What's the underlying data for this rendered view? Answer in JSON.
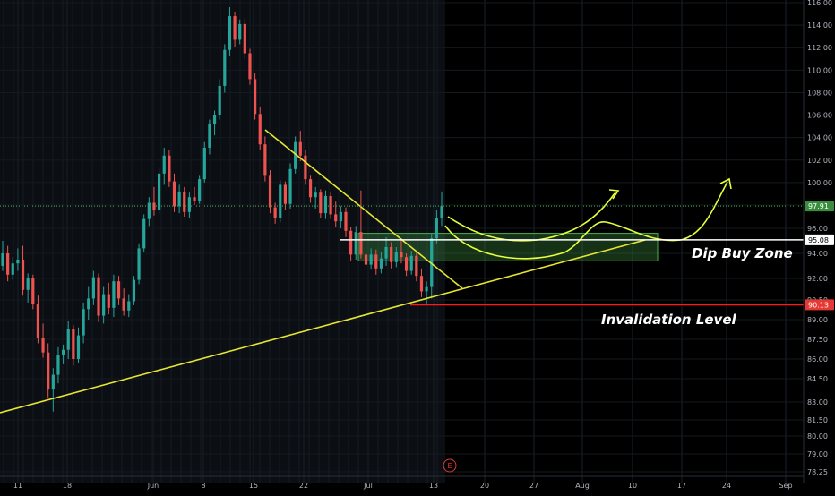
{
  "chart_data": {
    "type": "candlestick",
    "y_axis": {
      "ticks": [
        "116.00",
        "114.00",
        "112.00",
        "110.00",
        "108.00",
        "106.00",
        "104.00",
        "102.00",
        "100.00",
        "98.00",
        "96.00",
        "94.00",
        "92.00",
        "90.50",
        "89.00",
        "87.50",
        "86.00",
        "84.50",
        "83.00",
        "81.50",
        "80.00",
        "79.00",
        "78.25"
      ],
      "ylim": [
        78.0,
        116.5
      ]
    },
    "x_axis": {
      "ticks": [
        "11",
        "18",
        "Jun",
        "8",
        "15",
        "22",
        "Jul",
        "13",
        "20",
        "27",
        "Aug",
        "10",
        "17",
        "24",
        "Sep"
      ]
    },
    "price_badges": [
      {
        "label": "97.91",
        "value": 97.91,
        "color": "#388e3c"
      },
      {
        "label": "95.08",
        "value": 95.08,
        "color": "#ffffff"
      },
      {
        "label": "90.13",
        "value": 90.13,
        "color": "#e53935"
      }
    ],
    "zones": [
      {
        "name": "Dip Buy Zone",
        "y_low": 93.4,
        "y_high": 95.6,
        "color": "#4caf50"
      }
    ],
    "levels": [
      {
        "name": "Invalidation Level",
        "value": 90.13,
        "color": "#ff1a1a"
      },
      {
        "value": 95.08,
        "color": "#ffffff"
      }
    ],
    "annotations": [
      "Dip Buy Zone",
      "Invalidation Level"
    ],
    "event_marker": "E",
    "ohlc": [
      [
        93.0,
        95.0,
        92.6,
        94.0
      ],
      [
        94.0,
        94.6,
        91.8,
        92.3
      ],
      [
        92.3,
        93.7,
        91.9,
        93.2
      ],
      [
        93.2,
        94.4,
        92.6,
        93.5
      ],
      [
        93.5,
        94.6,
        90.8,
        91.2
      ],
      [
        91.2,
        92.4,
        90.3,
        92.0
      ],
      [
        92.0,
        92.3,
        89.8,
        90.2
      ],
      [
        90.2,
        90.8,
        87.2,
        87.6
      ],
      [
        87.6,
        88.7,
        86.1,
        86.5
      ],
      [
        86.5,
        87.2,
        83.3,
        83.8
      ],
      [
        83.8,
        85.3,
        82.2,
        84.8
      ],
      [
        84.8,
        86.9,
        84.2,
        86.3
      ],
      [
        86.3,
        87.1,
        85.6,
        86.7
      ],
      [
        86.7,
        88.9,
        86.0,
        88.3
      ],
      [
        88.3,
        88.6,
        85.5,
        86.0
      ],
      [
        86.0,
        88.4,
        85.7,
        87.8
      ],
      [
        87.8,
        90.3,
        87.2,
        89.8
      ],
      [
        89.8,
        91.4,
        89.0,
        90.6
      ],
      [
        90.6,
        92.6,
        90.1,
        92.1
      ],
      [
        92.1,
        92.4,
        88.8,
        89.3
      ],
      [
        89.3,
        91.4,
        88.7,
        90.9
      ],
      [
        90.9,
        91.7,
        89.4,
        89.9
      ],
      [
        89.9,
        92.3,
        89.2,
        91.8
      ],
      [
        91.8,
        92.2,
        90.1,
        90.6
      ],
      [
        90.6,
        91.3,
        89.3,
        89.7
      ],
      [
        89.7,
        90.9,
        89.2,
        90.4
      ],
      [
        90.4,
        92.2,
        90.1,
        91.9
      ],
      [
        91.9,
        94.8,
        91.6,
        94.4
      ],
      [
        94.4,
        97.2,
        94.1,
        96.8
      ],
      [
        96.8,
        98.7,
        96.2,
        98.2
      ],
      [
        98.2,
        99.6,
        97.1,
        97.6
      ],
      [
        97.6,
        101.3,
        97.2,
        100.8
      ],
      [
        100.8,
        103.1,
        99.8,
        102.4
      ],
      [
        102.4,
        102.9,
        99.6,
        100.1
      ],
      [
        100.1,
        100.8,
        97.4,
        97.9
      ],
      [
        97.9,
        99.8,
        97.3,
        99.2
      ],
      [
        99.2,
        99.6,
        97.0,
        97.4
      ],
      [
        97.4,
        99.1,
        96.9,
        98.7
      ],
      [
        98.7,
        99.6,
        98.0,
        98.4
      ],
      [
        98.4,
        100.6,
        98.1,
        100.3
      ],
      [
        100.3,
        103.6,
        100.0,
        103.1
      ],
      [
        103.1,
        105.6,
        102.5,
        105.2
      ],
      [
        105.2,
        106.4,
        104.2,
        106.0
      ],
      [
        106.0,
        109.2,
        105.6,
        108.6
      ],
      [
        108.6,
        112.3,
        108.0,
        111.8
      ],
      [
        111.8,
        115.6,
        111.3,
        114.8
      ],
      [
        114.8,
        115.2,
        112.1,
        112.7
      ],
      [
        112.7,
        114.5,
        112.3,
        114.1
      ],
      [
        114.1,
        114.6,
        111.0,
        111.5
      ],
      [
        111.5,
        111.9,
        108.7,
        109.2
      ],
      [
        109.2,
        109.7,
        105.6,
        106.1
      ],
      [
        106.1,
        106.7,
        102.9,
        103.4
      ],
      [
        103.4,
        104.1,
        100.1,
        100.6
      ],
      [
        100.6,
        101.1,
        97.3,
        97.8
      ],
      [
        97.8,
        98.2,
        96.4,
        96.9
      ],
      [
        96.9,
        100.2,
        96.5,
        99.8
      ],
      [
        99.8,
        100.1,
        97.6,
        98.1
      ],
      [
        98.1,
        101.7,
        97.7,
        101.2
      ],
      [
        101.2,
        104.1,
        100.8,
        103.6
      ],
      [
        103.6,
        104.6,
        101.9,
        102.4
      ],
      [
        102.4,
        102.9,
        99.8,
        100.3
      ],
      [
        100.3,
        100.6,
        98.2,
        98.7
      ],
      [
        98.7,
        99.6,
        97.7,
        99.1
      ],
      [
        99.1,
        99.4,
        96.9,
        97.3
      ],
      [
        97.3,
        99.3,
        96.8,
        98.8
      ],
      [
        98.8,
        99.1,
        96.8,
        97.2
      ],
      [
        97.2,
        98.3,
        96.1,
        96.6
      ],
      [
        96.6,
        97.9,
        96.0,
        97.4
      ],
      [
        97.4,
        97.8,
        95.3,
        95.8
      ],
      [
        95.8,
        96.1,
        93.4,
        93.9
      ],
      [
        93.9,
        96.2,
        93.5,
        95.7
      ],
      [
        95.7,
        99.3,
        93.6,
        93.9
      ],
      [
        93.9,
        94.6,
        92.6,
        93.1
      ],
      [
        93.1,
        94.4,
        92.7,
        93.9
      ],
      [
        93.9,
        94.3,
        92.3,
        92.8
      ],
      [
        92.8,
        94.1,
        92.4,
        93.6
      ],
      [
        93.6,
        95.3,
        93.0,
        94.5
      ],
      [
        94.5,
        94.9,
        92.8,
        93.3
      ],
      [
        93.3,
        94.5,
        92.9,
        94.1
      ],
      [
        94.1,
        95.2,
        93.2,
        93.7
      ],
      [
        93.7,
        94.0,
        92.2,
        92.6
      ],
      [
        92.6,
        94.2,
        92.3,
        93.8
      ],
      [
        93.8,
        94.1,
        91.8,
        92.2
      ],
      [
        92.2,
        92.8,
        90.7,
        91.1
      ],
      [
        91.1,
        91.8,
        90.2,
        91.4
      ],
      [
        91.4,
        95.6,
        90.6,
        95.2
      ],
      [
        95.2,
        97.6,
        94.8,
        96.9
      ],
      [
        96.9,
        99.2,
        96.2,
        97.9
      ]
    ]
  },
  "drawings": {
    "arrow_color": "#e6ff3a",
    "trendline_color": "#e6e632"
  }
}
